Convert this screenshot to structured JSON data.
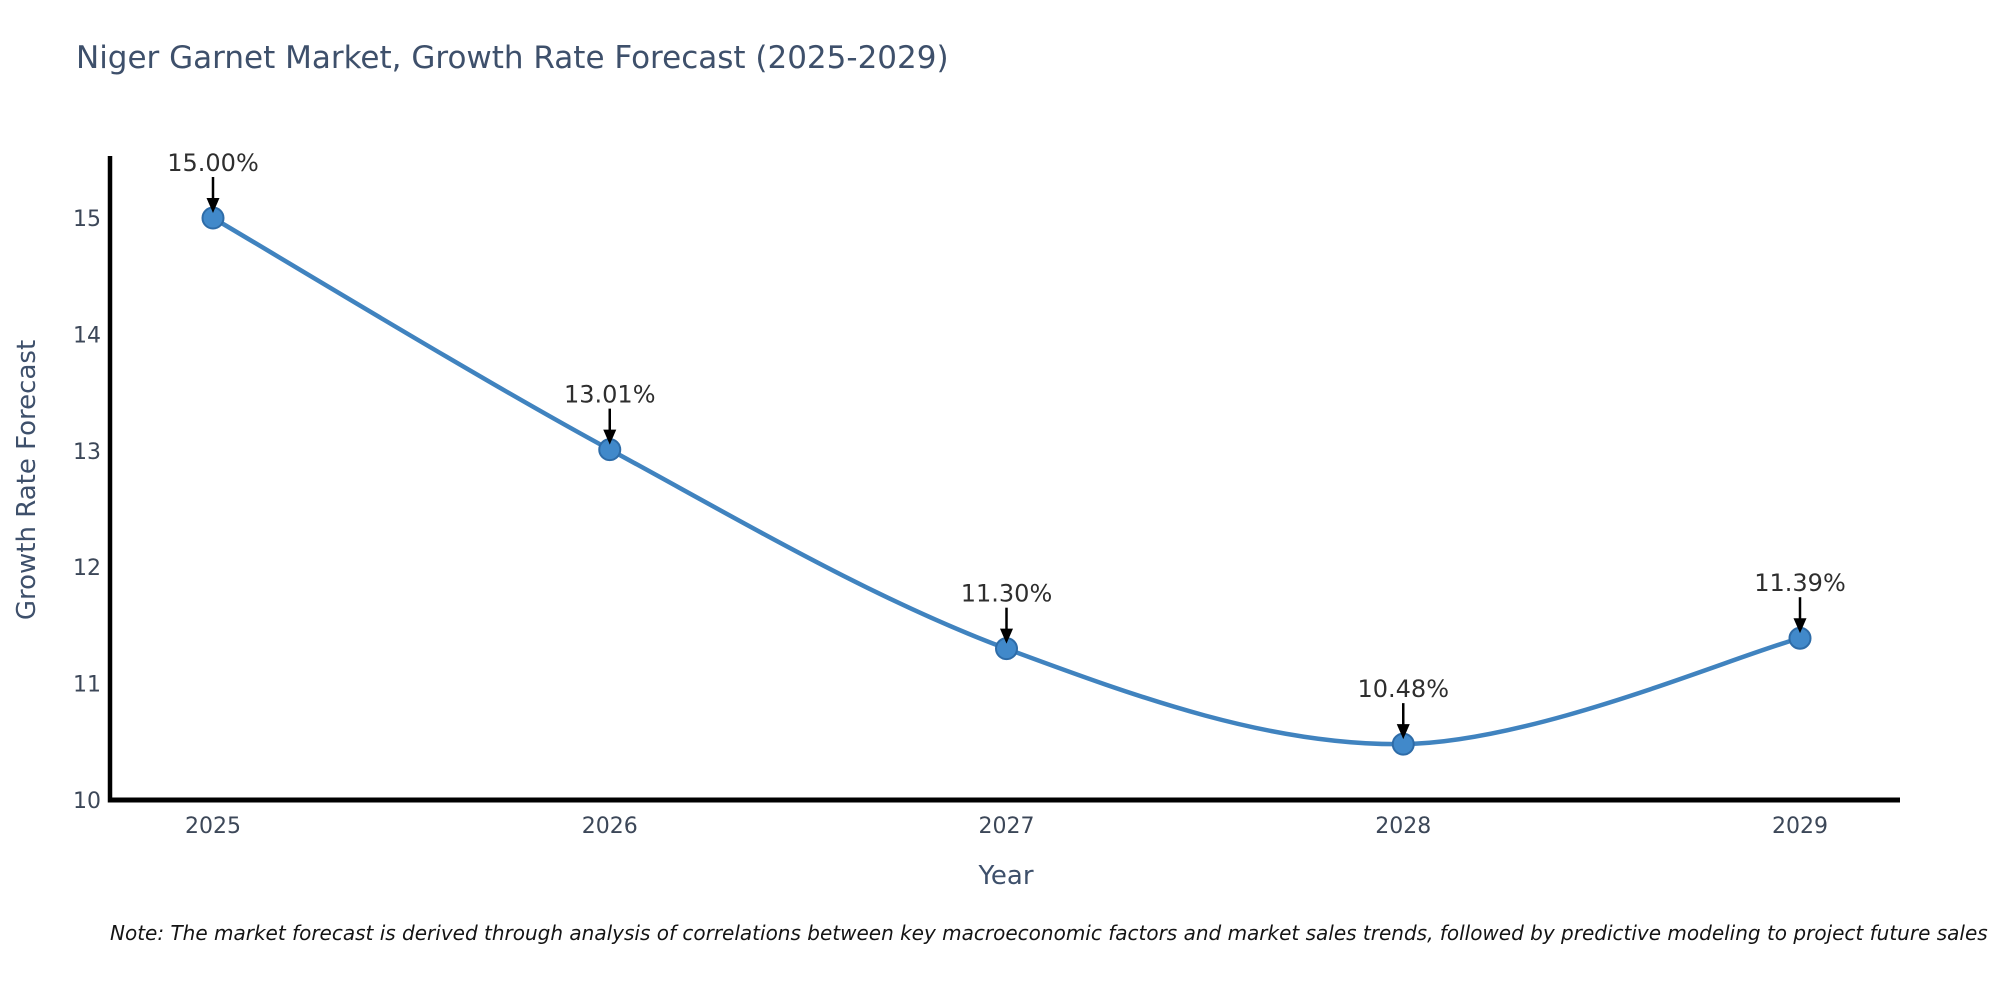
{
  "title": "Niger Garnet Market, Growth Rate Forecast (2025-2029)",
  "note": "Note: The market forecast is derived through analysis of correlations between key macroeconomic factors and market sales trends, followed by predictive modeling to project future sales",
  "chart_data": {
    "type": "line",
    "title": "Niger Garnet Market, Growth Rate Forecast (2025-2029)",
    "xlabel": "Year",
    "ylabel": "Growth Rate Forecast",
    "categories": [
      "2025",
      "2026",
      "2027",
      "2028",
      "2029"
    ],
    "values": [
      15.0,
      13.01,
      11.3,
      10.48,
      11.39
    ],
    "point_labels": [
      "15.00%",
      "13.01%",
      "11.30%",
      "10.48%",
      "11.39%"
    ],
    "yticks": [
      10,
      11,
      12,
      13,
      14,
      15
    ],
    "ylim": [
      10,
      15.6
    ],
    "grid": false,
    "legend": "none",
    "smooth": true,
    "colors": {
      "line": "#4083bf",
      "marker_fill": "#4189ca",
      "marker_edge": "#2e6ca8",
      "annotation_text": "#2e2e2e",
      "annotation_arrow": "#000000",
      "tick_label": "#3c4758",
      "axis_label": "#3e506b",
      "title": "#3e506b",
      "spine": "#000000"
    }
  }
}
